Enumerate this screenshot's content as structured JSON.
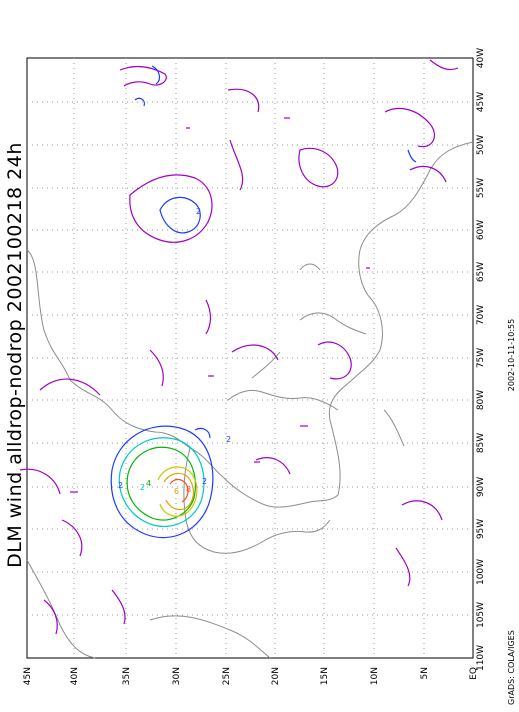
{
  "title": "DLM wind alldrop-nodrop 2002100218 24h",
  "timestamp": "2002-10-11-10:55",
  "credit": "GrADS: COLA/IGES",
  "axes": {
    "lon_labels": [
      "110W",
      "105W",
      "100W",
      "95W",
      "90W",
      "85W",
      "80W",
      "75W",
      "70W",
      "65W",
      "60W",
      "55W",
      "50W",
      "45W",
      "40W"
    ],
    "lat_labels": [
      "EQ",
      "5N",
      "10N",
      "15N",
      "20N",
      "25N",
      "30N",
      "35N",
      "40N",
      "45N"
    ]
  },
  "contour_labels": [
    "2",
    "2",
    "2",
    "4",
    "6",
    "8",
    "2",
    "2"
  ],
  "colors": {
    "magenta": "#a000c8",
    "blue": "#1e3cff",
    "coast": "#8c8c8c",
    "grid": "#9a9a9a",
    "cyan": "#00c8c8",
    "green": "#00b400",
    "yellow": "#c8c800",
    "orange": "#e6a000",
    "red": "#f05030"
  }
}
